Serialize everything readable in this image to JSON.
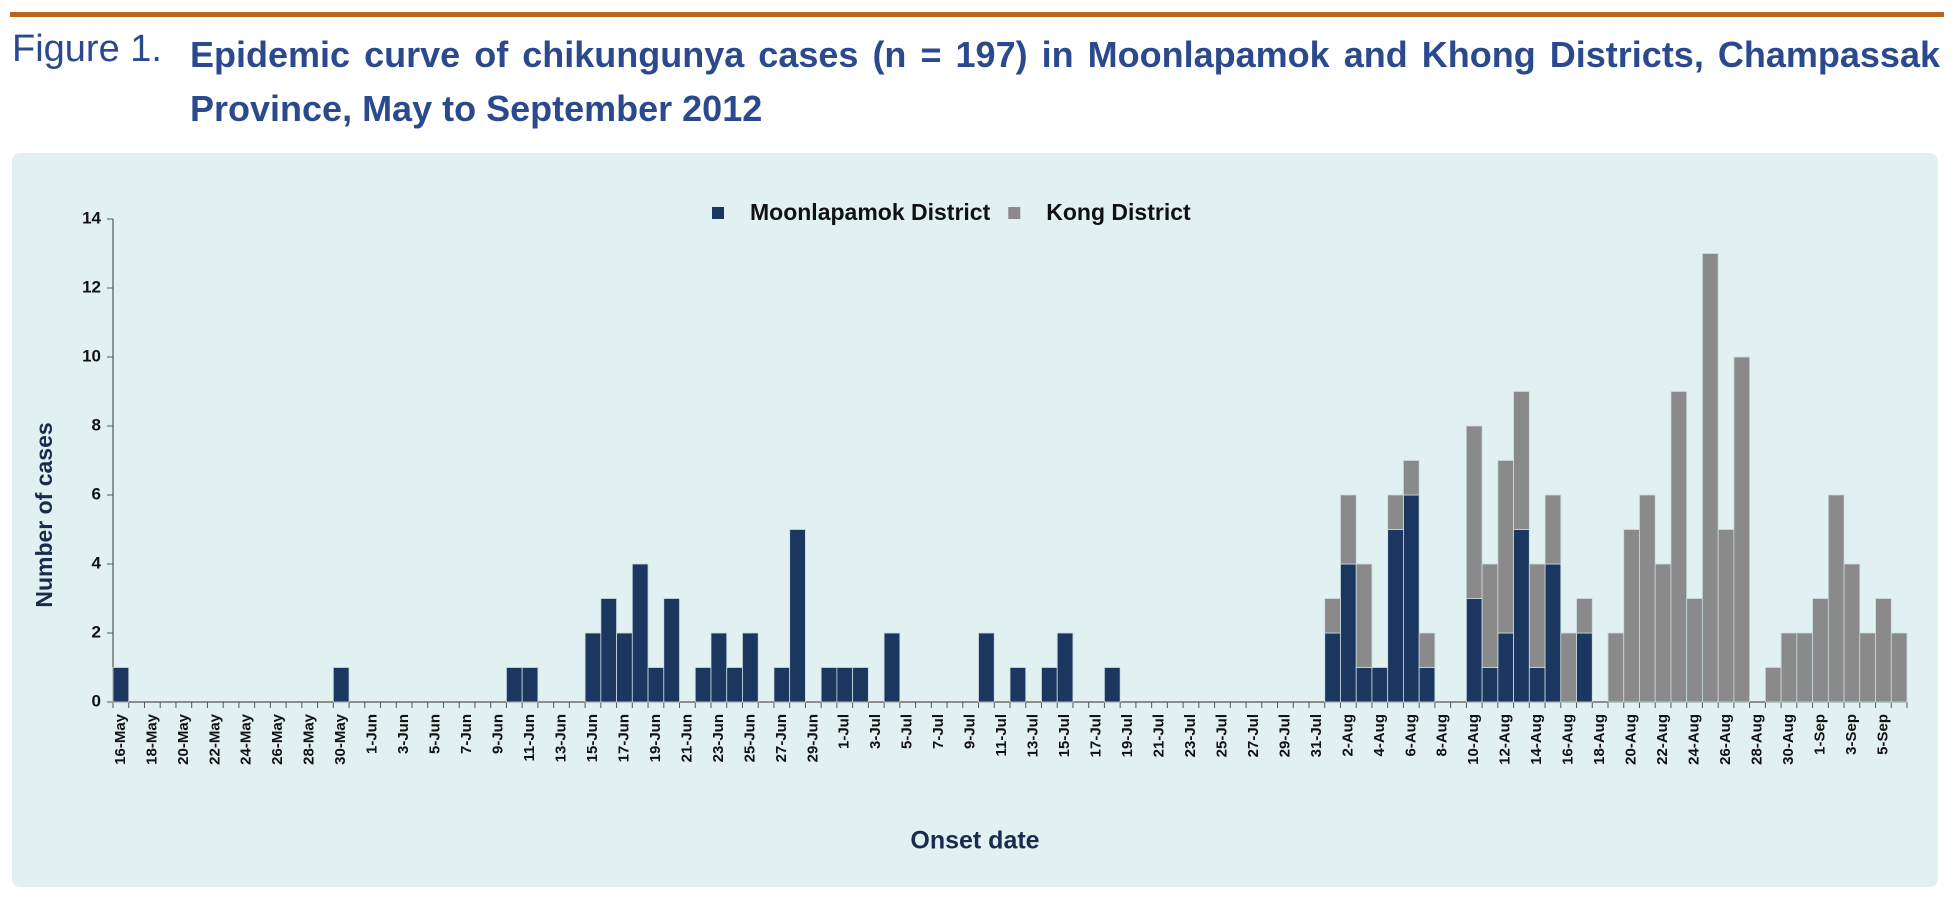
{
  "figure_label": "Figure 1.",
  "chart_data": {
    "type": "stacked_bar",
    "title": "Epidemic curve of chikungunya cases (n = 197) in Moonlapamok and Khong Districts, Champassak Province, May to September 2012",
    "x_label": "Onset date",
    "y_label": "Number of cases",
    "categories": [
      "16-May",
      null,
      "18-May",
      null,
      "20-May",
      null,
      "22-May",
      null,
      "24-May",
      null,
      "26-May",
      null,
      "28-May",
      null,
      "30-May",
      null,
      "1-Jun",
      null,
      "3-Jun",
      null,
      "5-Jun",
      null,
      "7-Jun",
      null,
      "9-Jun",
      null,
      "11-Jun",
      null,
      "13-Jun",
      null,
      "15-Jun",
      null,
      "17-Jun",
      null,
      "19-Jun",
      null,
      "21-Jun",
      null,
      "23-Jun",
      null,
      "25-Jun",
      null,
      "27-Jun",
      null,
      "29-Jun",
      null,
      "1-Jul",
      null,
      "3-Jul",
      null,
      "5-Jul",
      null,
      "7-Jul",
      null,
      "9-Jul",
      null,
      "11-Jul",
      null,
      "13-Jul",
      null,
      "15-Jul",
      null,
      "17-Jul",
      null,
      "19-Jul",
      null,
      "21-Jul",
      null,
      "23-Jul",
      null,
      "25-Jul",
      null,
      "27-Jul",
      null,
      "29-Jul",
      null,
      "31-Jul",
      null,
      "2-Aug",
      null,
      "4-Aug",
      null,
      "6-Aug",
      null,
      "8-Aug",
      null,
      "10-Aug",
      null,
      "12-Aug",
      null,
      "14-Aug",
      null,
      "16-Aug",
      null,
      "18-Aug",
      null,
      "20-Aug",
      null,
      "22-Aug",
      null,
      "24-Aug",
      null,
      "26-Aug",
      null,
      "28-Aug",
      null,
      "30-Aug",
      null,
      "1-Sep",
      null,
      "3-Sep",
      null,
      "5-Sep",
      null
    ],
    "series": [
      {
        "name": "Moonlapamok District",
        "color": "#1c375f",
        "values": [
          1,
          0,
          0,
          0,
          0,
          0,
          0,
          0,
          0,
          0,
          0,
          0,
          0,
          0,
          1,
          0,
          0,
          0,
          0,
          0,
          0,
          0,
          0,
          0,
          0,
          1,
          1,
          0,
          0,
          0,
          2,
          3,
          2,
          4,
          1,
          3,
          0,
          1,
          2,
          1,
          2,
          0,
          1,
          5,
          0,
          1,
          1,
          1,
          0,
          2,
          0,
          0,
          0,
          0,
          0,
          2,
          0,
          1,
          0,
          1,
          2,
          0,
          0,
          1,
          0,
          0,
          0,
          0,
          0,
          0,
          0,
          0,
          0,
          0,
          0,
          0,
          0,
          2,
          4,
          1,
          1,
          5,
          6,
          1,
          0,
          0,
          3,
          1,
          2,
          5,
          1,
          4,
          0,
          2,
          0,
          0,
          0,
          0,
          0,
          0,
          0,
          0,
          0,
          0,
          0,
          0,
          0,
          0,
          0,
          0,
          0,
          0,
          0,
          0
        ]
      },
      {
        "name": "Kong District",
        "color": "#8a8a8a",
        "values": [
          0,
          0,
          0,
          0,
          0,
          0,
          0,
          0,
          0,
          0,
          0,
          0,
          0,
          0,
          0,
          0,
          0,
          0,
          0,
          0,
          0,
          0,
          0,
          0,
          0,
          0,
          0,
          0,
          0,
          0,
          0,
          0,
          0,
          0,
          0,
          0,
          0,
          0,
          0,
          0,
          0,
          0,
          0,
          0,
          0,
          0,
          0,
          0,
          0,
          0,
          0,
          0,
          0,
          0,
          0,
          0,
          0,
          0,
          0,
          0,
          0,
          0,
          0,
          0,
          0,
          0,
          0,
          0,
          0,
          0,
          0,
          0,
          0,
          0,
          0,
          0,
          0,
          1,
          2,
          3,
          0,
          1,
          1,
          1,
          0,
          0,
          5,
          3,
          5,
          4,
          3,
          2,
          2,
          1,
          0,
          2,
          5,
          6,
          4,
          9,
          3,
          13,
          5,
          10,
          0,
          1,
          2,
          2,
          3,
          6,
          4,
          2,
          3,
          2
        ]
      }
    ],
    "ylim": [
      0,
      14
    ],
    "yticks": [
      0,
      2,
      4,
      6,
      8,
      10,
      12,
      14
    ],
    "grid": false,
    "legend": "top"
  }
}
